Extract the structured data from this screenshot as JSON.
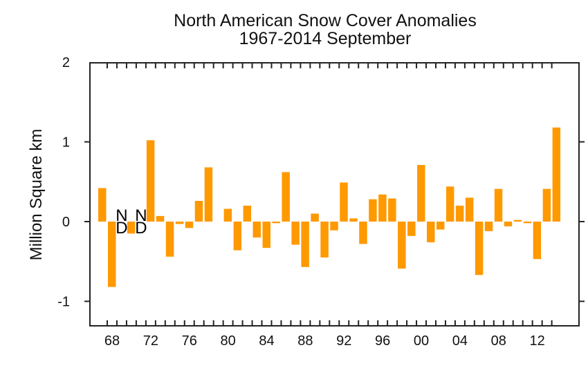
{
  "chart_data": {
    "type": "bar",
    "title": "North American Snow Cover Anomalies",
    "subtitle": "1967-2014 September",
    "xlabel": "",
    "ylabel": "Million Square km",
    "ylim": [
      -1.3,
      2.0
    ],
    "yticks": [
      2,
      1,
      0,
      -1
    ],
    "ytick_labels": [
      "2",
      "1",
      "0",
      "-1"
    ],
    "xlim": [
      1967,
      2014
    ],
    "xtick_labels": [
      "68",
      "72",
      "76",
      "80",
      "84",
      "88",
      "92",
      "96",
      "00",
      "04",
      "08",
      "12"
    ],
    "xtick_years": [
      1968,
      1972,
      1976,
      1980,
      1984,
      1988,
      1992,
      1996,
      2000,
      2004,
      2008,
      2012
    ],
    "grid": false,
    "bar_color": "#ff9900",
    "missing_label": "ND",
    "missing_years": [
      1969,
      1971,
      1979
    ],
    "annotated_missing_years": [
      1969,
      1971
    ],
    "series": [
      {
        "name": "September anomaly",
        "years": [
          1967,
          1968,
          1969,
          1970,
          1971,
          1972,
          1973,
          1974,
          1975,
          1976,
          1977,
          1978,
          1979,
          1980,
          1981,
          1982,
          1983,
          1984,
          1985,
          1986,
          1987,
          1988,
          1989,
          1990,
          1991,
          1992,
          1993,
          1994,
          1995,
          1996,
          1997,
          1998,
          1999,
          2000,
          2001,
          2002,
          2003,
          2004,
          2005,
          2006,
          2007,
          2008,
          2009,
          2010,
          2011,
          2012,
          2013,
          2014
        ],
        "values": [
          0.42,
          -0.82,
          null,
          -0.15,
          null,
          1.02,
          0.07,
          -0.44,
          -0.03,
          -0.08,
          0.26,
          0.68,
          null,
          0.16,
          -0.36,
          0.2,
          -0.2,
          -0.33,
          -0.02,
          0.62,
          -0.29,
          -0.57,
          0.1,
          -0.45,
          -0.11,
          0.49,
          0.04,
          -0.28,
          0.28,
          0.34,
          0.29,
          -0.59,
          -0.18,
          0.71,
          -0.26,
          -0.1,
          0.44,
          0.2,
          0.3,
          -0.67,
          -0.12,
          0.41,
          -0.06,
          0.02,
          -0.02,
          -0.47,
          0.41,
          1.18
        ]
      }
    ]
  }
}
